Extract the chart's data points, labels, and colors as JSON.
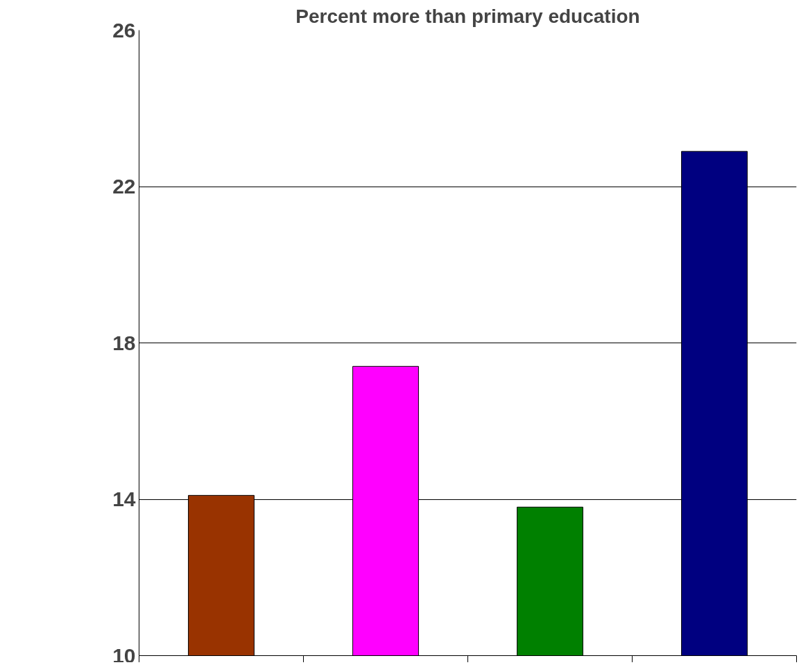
{
  "chart_data": {
    "type": "bar",
    "title": "Percent more than primary education",
    "categories": [
      null,
      null,
      null,
      null
    ],
    "values": [
      14.1,
      17.4,
      13.8,
      22.9
    ],
    "colors": [
      "#993300",
      "#ff00ff",
      "#008000",
      "#000080"
    ],
    "ylim": [
      10,
      26
    ],
    "yticks": [
      10,
      14,
      18,
      22,
      26
    ],
    "grid": "y",
    "tick_labels": "y"
  }
}
